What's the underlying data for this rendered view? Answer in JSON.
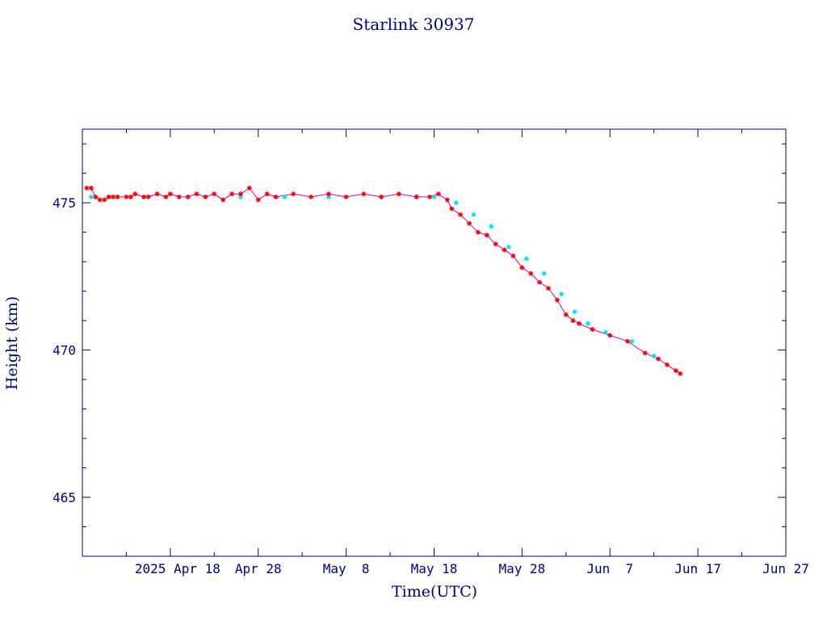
{
  "chart_data": {
    "type": "line",
    "title": "Starlink 30937",
    "xlabel": "Time(UTC)",
    "ylabel": "Height (km)",
    "x_tick_labels": [
      "2025 Apr 18",
      "Apr 28",
      "May  8",
      "May 18",
      "May 28",
      "Jun  7",
      "Jun 17",
      "Jun 27"
    ],
    "x_range_days_rel_apr18": [
      -10,
      70
    ],
    "x_ticks_days_rel_apr18": [
      0,
      10,
      20,
      30,
      40,
      50,
      60,
      70
    ],
    "ylim": [
      463,
      477.5
    ],
    "y_ticks": [
      465,
      470,
      475
    ],
    "grid": false,
    "colors": {
      "axis": "#00008b",
      "text": "#00008b",
      "line": "#cc00cc",
      "series_primary": "#ff0000",
      "series_secondary": "#00e5ee"
    },
    "series": [
      {
        "marker": "asterisk",
        "color": "#ff0000",
        "points": [
          [
            -9.5,
            475.5
          ],
          [
            -9.0,
            475.5
          ],
          [
            -8.5,
            475.2
          ],
          [
            -8.0,
            475.1
          ],
          [
            -7.5,
            475.1
          ],
          [
            -7.0,
            475.2
          ],
          [
            -6.5,
            475.2
          ],
          [
            -6.0,
            475.2
          ],
          [
            -5.0,
            475.2
          ],
          [
            -4.5,
            475.2
          ],
          [
            -4.0,
            475.3
          ],
          [
            -3.0,
            475.2
          ],
          [
            -2.5,
            475.2
          ],
          [
            -1.5,
            475.3
          ],
          [
            -0.5,
            475.2
          ],
          [
            0.0,
            475.3
          ],
          [
            1.0,
            475.2
          ],
          [
            2.0,
            475.2
          ],
          [
            3.0,
            475.3
          ],
          [
            4.0,
            475.2
          ],
          [
            5.0,
            475.3
          ],
          [
            6.0,
            475.1
          ],
          [
            7.0,
            475.3
          ],
          [
            8.0,
            475.3
          ],
          [
            9.0,
            475.5
          ],
          [
            10.0,
            475.1
          ],
          [
            11.0,
            475.3
          ],
          [
            12.0,
            475.2
          ],
          [
            14.0,
            475.3
          ],
          [
            16.0,
            475.2
          ],
          [
            18.0,
            475.3
          ],
          [
            20.0,
            475.2
          ],
          [
            22.0,
            475.3
          ],
          [
            24.0,
            475.2
          ],
          [
            26.0,
            475.3
          ],
          [
            28.0,
            475.2
          ],
          [
            29.5,
            475.2
          ],
          [
            30.5,
            475.3
          ],
          [
            31.5,
            475.1
          ],
          [
            32.0,
            474.8
          ],
          [
            33.0,
            474.6
          ],
          [
            34.0,
            474.3
          ],
          [
            35.0,
            474.0
          ],
          [
            36.0,
            473.9
          ],
          [
            37.0,
            473.6
          ],
          [
            38.0,
            473.4
          ],
          [
            39.0,
            473.2
          ],
          [
            40.0,
            472.8
          ],
          [
            41.0,
            472.6
          ],
          [
            42.0,
            472.3
          ],
          [
            43.0,
            472.1
          ],
          [
            44.0,
            471.7
          ],
          [
            45.0,
            471.2
          ],
          [
            45.8,
            471.0
          ],
          [
            46.5,
            470.9
          ],
          [
            48.0,
            470.7
          ],
          [
            50.0,
            470.5
          ],
          [
            52.0,
            470.3
          ],
          [
            54.0,
            469.9
          ],
          [
            55.5,
            469.7
          ],
          [
            56.5,
            469.5
          ],
          [
            57.5,
            469.3
          ],
          [
            58.0,
            469.2
          ]
        ]
      },
      {
        "marker": "asterisk",
        "color": "#00e5ee",
        "points": [
          [
            -9.0,
            475.2
          ],
          [
            -7.0,
            475.2
          ],
          [
            -3.0,
            475.2
          ],
          [
            2.0,
            475.2
          ],
          [
            8.0,
            475.2
          ],
          [
            13.0,
            475.2
          ],
          [
            18.0,
            475.2
          ],
          [
            24.0,
            475.2
          ],
          [
            28.0,
            475.2
          ],
          [
            30.0,
            475.2
          ],
          [
            32.5,
            475.0
          ],
          [
            34.5,
            474.6
          ],
          [
            36.5,
            474.2
          ],
          [
            38.5,
            473.5
          ],
          [
            40.5,
            473.1
          ],
          [
            42.5,
            472.6
          ],
          [
            44.5,
            471.9
          ],
          [
            46.0,
            471.3
          ],
          [
            47.5,
            470.9
          ],
          [
            49.5,
            470.6
          ],
          [
            52.5,
            470.3
          ],
          [
            55.0,
            469.8
          ]
        ]
      }
    ]
  }
}
